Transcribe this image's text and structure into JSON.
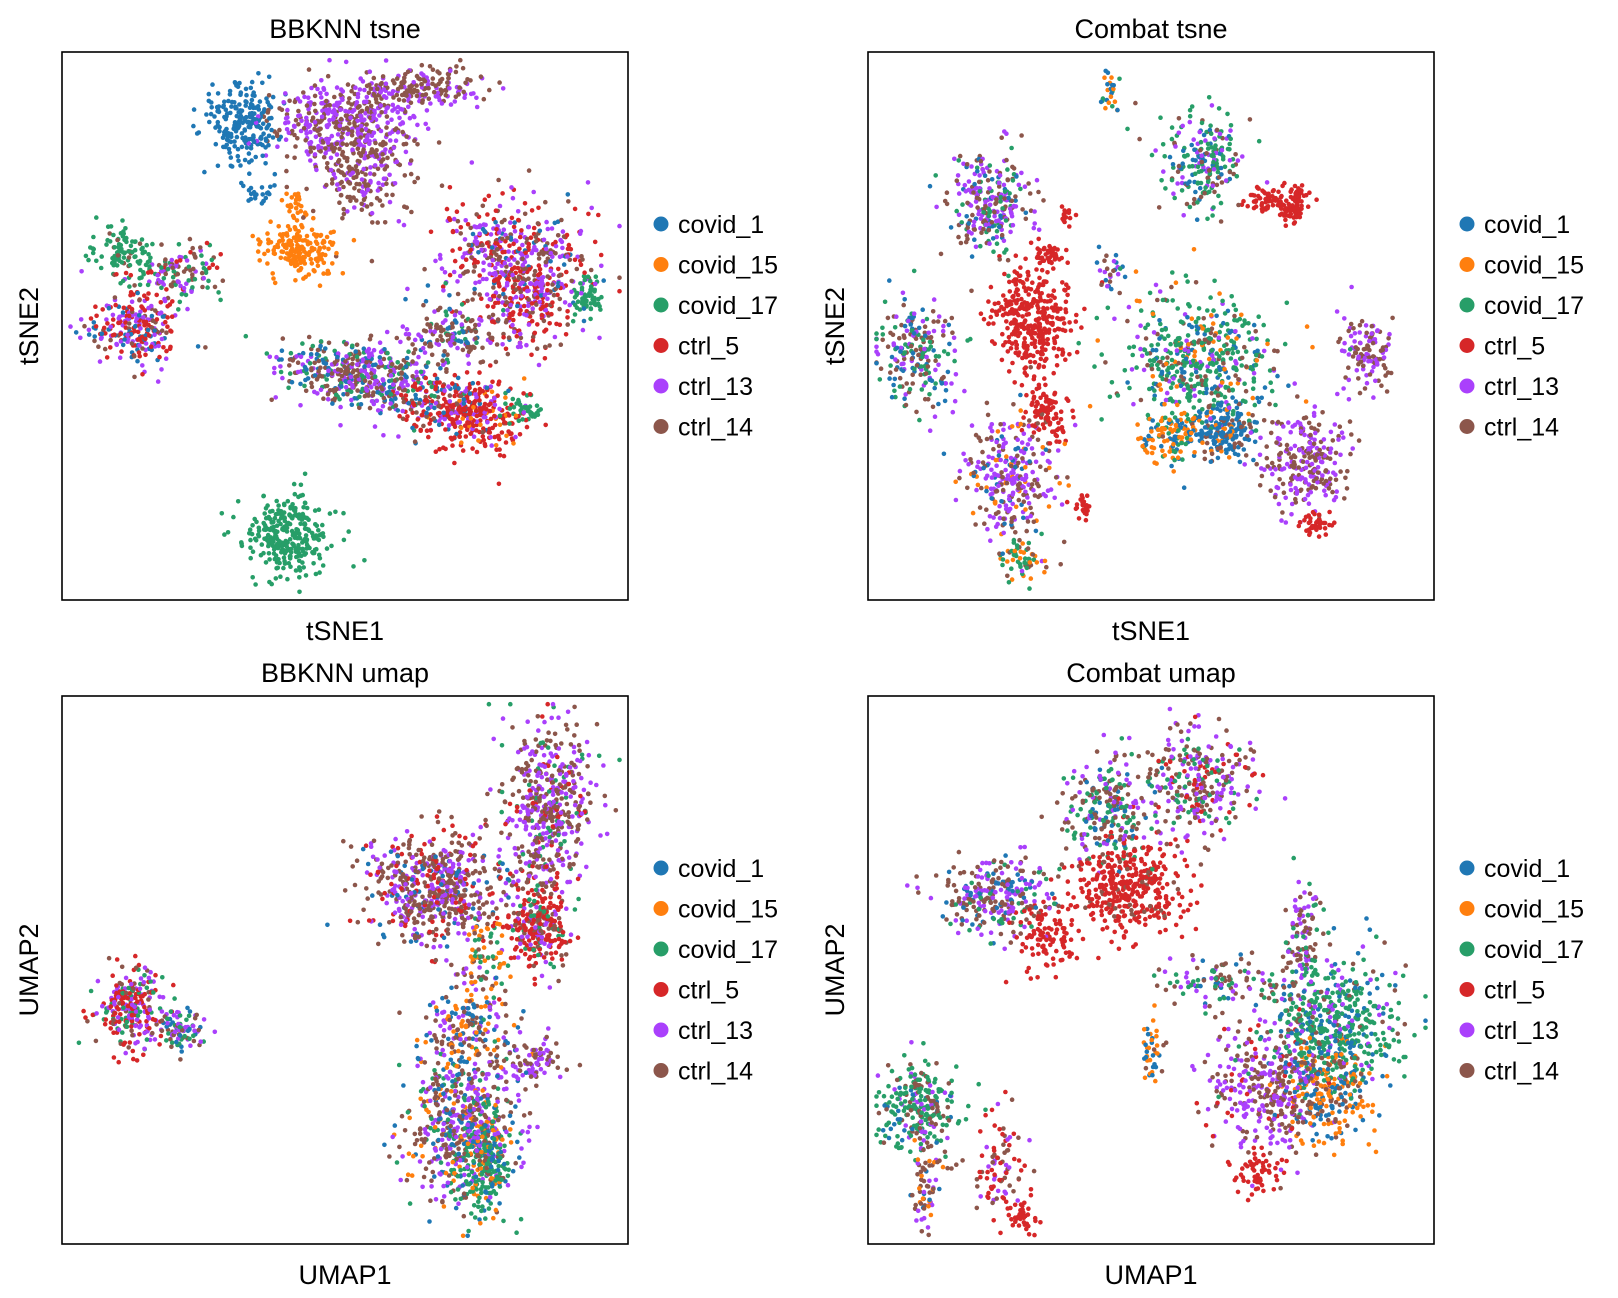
{
  "colors": {
    "covid_1": "#1f77b4",
    "covid_15": "#ff7f0e",
    "covid_17": "#279e68",
    "ctrl_5": "#d62728",
    "ctrl_13": "#aa40fc",
    "ctrl_14": "#8c564b"
  },
  "chart_data": [
    {
      "type": "scatter",
      "title": "BBKNN tsne",
      "xlabel": "tSNE1",
      "ylabel": "tSNE2",
      "ticks": "none",
      "legend": {
        "placement": "right",
        "entries": [
          "covid_1",
          "covid_15",
          "covid_17",
          "ctrl_5",
          "ctrl_13",
          "ctrl_14"
        ]
      },
      "clusters": [
        {
          "x": 0.32,
          "y": 0.87,
          "sx": 0.035,
          "sy": 0.04,
          "n": 220,
          "mix": {
            "covid_1": 1
          }
        },
        {
          "x": 0.35,
          "y": 0.74,
          "sx": 0.012,
          "sy": 0.01,
          "n": 20,
          "mix": {
            "covid_1": 1
          }
        },
        {
          "x": 0.42,
          "y": 0.64,
          "sx": 0.03,
          "sy": 0.025,
          "n": 180,
          "mix": {
            "covid_15": 1
          }
        },
        {
          "x": 0.41,
          "y": 0.72,
          "sx": 0.012,
          "sy": 0.015,
          "n": 25,
          "mix": {
            "covid_15": 1
          }
        },
        {
          "x": 0.5,
          "y": 0.87,
          "sx": 0.06,
          "sy": 0.04,
          "n": 450,
          "mix": {
            "ctrl_13": 0.5,
            "ctrl_14": 0.5
          }
        },
        {
          "x": 0.53,
          "y": 0.77,
          "sx": 0.04,
          "sy": 0.04,
          "n": 180,
          "mix": {
            "ctrl_13": 0.3,
            "ctrl_14": 0.7
          }
        },
        {
          "x": 0.63,
          "y": 0.93,
          "sx": 0.055,
          "sy": 0.02,
          "n": 180,
          "mix": {
            "ctrl_13": 0.45,
            "ctrl_14": 0.55
          }
        },
        {
          "x": 0.11,
          "y": 0.64,
          "sx": 0.025,
          "sy": 0.025,
          "n": 100,
          "mix": {
            "covid_17": 0.85,
            "ctrl_14": 0.15
          }
        },
        {
          "x": 0.21,
          "y": 0.6,
          "sx": 0.04,
          "sy": 0.025,
          "n": 120,
          "mix": {
            "covid_17": 0.3,
            "ctrl_13": 0.3,
            "ctrl_14": 0.25,
            "ctrl_5": 0.15
          }
        },
        {
          "x": 0.13,
          "y": 0.5,
          "sx": 0.04,
          "sy": 0.035,
          "n": 260,
          "mix": {
            "ctrl_5": 0.35,
            "ctrl_13": 0.3,
            "covid_1": 0.2,
            "ctrl_14": 0.15
          }
        },
        {
          "x": 0.8,
          "y": 0.62,
          "sx": 0.07,
          "sy": 0.06,
          "n": 500,
          "mix": {
            "ctrl_13": 0.4,
            "ctrl_14": 0.25,
            "ctrl_5": 0.25,
            "covid_1": 0.1
          }
        },
        {
          "x": 0.83,
          "y": 0.53,
          "sx": 0.035,
          "sy": 0.04,
          "n": 150,
          "mix": {
            "ctrl_5": 0.5,
            "ctrl_13": 0.3,
            "ctrl_14": 0.2
          }
        },
        {
          "x": 0.93,
          "y": 0.55,
          "sx": 0.015,
          "sy": 0.02,
          "n": 60,
          "mix": {
            "covid_17": 1
          }
        },
        {
          "x": 0.69,
          "y": 0.48,
          "sx": 0.04,
          "sy": 0.03,
          "n": 150,
          "mix": {
            "ctrl_14": 0.45,
            "ctrl_13": 0.25,
            "covid_1": 0.15,
            "covid_17": 0.15
          }
        },
        {
          "x": 0.48,
          "y": 0.42,
          "sx": 0.05,
          "sy": 0.03,
          "n": 260,
          "mix": {
            "ctrl_14": 0.35,
            "ctrl_13": 0.3,
            "covid_1": 0.2,
            "covid_17": 0.15
          }
        },
        {
          "x": 0.58,
          "y": 0.4,
          "sx": 0.045,
          "sy": 0.03,
          "n": 220,
          "mix": {
            "ctrl_13": 0.35,
            "ctrl_14": 0.3,
            "covid_1": 0.2,
            "covid_17": 0.15
          }
        },
        {
          "x": 0.68,
          "y": 0.35,
          "sx": 0.045,
          "sy": 0.03,
          "n": 260,
          "mix": {
            "ctrl_5": 0.6,
            "ctrl_13": 0.15,
            "ctrl_14": 0.15,
            "covid_1": 0.1
          }
        },
        {
          "x": 0.76,
          "y": 0.33,
          "sx": 0.03,
          "sy": 0.03,
          "n": 150,
          "mix": {
            "ctrl_5": 0.7,
            "covid_15": 0.15,
            "ctrl_13": 0.15
          }
        },
        {
          "x": 0.81,
          "y": 0.35,
          "sx": 0.02,
          "sy": 0.015,
          "n": 40,
          "mix": {
            "covid_17": 1
          }
        },
        {
          "x": 0.4,
          "y": 0.12,
          "sx": 0.035,
          "sy": 0.035,
          "n": 300,
          "mix": {
            "covid_17": 1
          }
        }
      ]
    },
    {
      "type": "scatter",
      "title": "Combat tsne",
      "xlabel": "tSNE1",
      "ylabel": "tSNE2",
      "ticks": "none",
      "legend": {
        "placement": "right",
        "entries": [
          "covid_1",
          "covid_15",
          "covid_17",
          "ctrl_5",
          "ctrl_13",
          "ctrl_14"
        ]
      },
      "clusters": [
        {
          "x": 0.43,
          "y": 0.92,
          "sx": 0.008,
          "sy": 0.02,
          "n": 25,
          "mix": {
            "covid_1": 0.4,
            "covid_17": 0.3,
            "covid_15": 0.3
          }
        },
        {
          "x": 0.6,
          "y": 0.8,
          "sx": 0.04,
          "sy": 0.04,
          "n": 220,
          "mix": {
            "covid_17": 0.45,
            "covid_1": 0.2,
            "ctrl_14": 0.2,
            "ctrl_13": 0.15
          }
        },
        {
          "x": 0.7,
          "y": 0.73,
          "sx": 0.02,
          "sy": 0.012,
          "n": 60,
          "mix": {
            "ctrl_5": 1
          }
        },
        {
          "x": 0.75,
          "y": 0.71,
          "sx": 0.012,
          "sy": 0.01,
          "n": 50,
          "mix": {
            "ctrl_5": 1
          }
        },
        {
          "x": 0.76,
          "y": 0.74,
          "sx": 0.01,
          "sy": 0.01,
          "n": 30,
          "mix": {
            "ctrl_5": 1
          }
        },
        {
          "x": 0.22,
          "y": 0.72,
          "sx": 0.035,
          "sy": 0.05,
          "n": 260,
          "mix": {
            "ctrl_13": 0.4,
            "ctrl_14": 0.3,
            "covid_1": 0.15,
            "covid_17": 0.15
          }
        },
        {
          "x": 0.32,
          "y": 0.63,
          "sx": 0.012,
          "sy": 0.01,
          "n": 40,
          "mix": {
            "ctrl_5": 1
          }
        },
        {
          "x": 0.35,
          "y": 0.7,
          "sx": 0.008,
          "sy": 0.008,
          "n": 15,
          "mix": {
            "ctrl_5": 1
          }
        },
        {
          "x": 0.29,
          "y": 0.51,
          "sx": 0.035,
          "sy": 0.05,
          "n": 350,
          "mix": {
            "ctrl_5": 1
          }
        },
        {
          "x": 0.32,
          "y": 0.34,
          "sx": 0.02,
          "sy": 0.025,
          "n": 90,
          "mix": {
            "ctrl_5": 1
          }
        },
        {
          "x": 0.09,
          "y": 0.45,
          "sx": 0.035,
          "sy": 0.05,
          "n": 220,
          "mix": {
            "ctrl_14": 0.3,
            "covid_17": 0.3,
            "covid_1": 0.2,
            "ctrl_13": 0.2
          }
        },
        {
          "x": 0.25,
          "y": 0.22,
          "sx": 0.04,
          "sy": 0.06,
          "n": 300,
          "mix": {
            "ctrl_13": 0.45,
            "ctrl_14": 0.35,
            "covid_1": 0.1,
            "covid_15": 0.1
          }
        },
        {
          "x": 0.27,
          "y": 0.08,
          "sx": 0.02,
          "sy": 0.02,
          "n": 60,
          "mix": {
            "covid_17": 0.5,
            "covid_15": 0.3,
            "ctrl_14": 0.2
          }
        },
        {
          "x": 0.38,
          "y": 0.17,
          "sx": 0.01,
          "sy": 0.012,
          "n": 25,
          "mix": {
            "ctrl_5": 1
          }
        },
        {
          "x": 0.58,
          "y": 0.44,
          "sx": 0.07,
          "sy": 0.06,
          "n": 500,
          "mix": {
            "covid_17": 0.5,
            "ctrl_14": 0.15,
            "covid_1": 0.15,
            "covid_15": 0.1,
            "ctrl_13": 0.1
          }
        },
        {
          "x": 0.63,
          "y": 0.31,
          "sx": 0.03,
          "sy": 0.025,
          "n": 200,
          "mix": {
            "covid_1": 0.7,
            "covid_15": 0.15,
            "ctrl_14": 0.15
          }
        },
        {
          "x": 0.54,
          "y": 0.3,
          "sx": 0.025,
          "sy": 0.03,
          "n": 120,
          "mix": {
            "covid_15": 0.5,
            "covid_1": 0.3,
            "covid_17": 0.2
          }
        },
        {
          "x": 0.77,
          "y": 0.25,
          "sx": 0.04,
          "sy": 0.045,
          "n": 250,
          "mix": {
            "ctrl_14": 0.5,
            "ctrl_13": 0.5
          }
        },
        {
          "x": 0.88,
          "y": 0.45,
          "sx": 0.025,
          "sy": 0.035,
          "n": 120,
          "mix": {
            "ctrl_14": 0.5,
            "ctrl_13": 0.5
          }
        },
        {
          "x": 0.79,
          "y": 0.14,
          "sx": 0.015,
          "sy": 0.01,
          "n": 40,
          "mix": {
            "ctrl_5": 1
          }
        },
        {
          "x": 0.43,
          "y": 0.6,
          "sx": 0.012,
          "sy": 0.02,
          "n": 25,
          "mix": {
            "covid_1": 0.3,
            "ctrl_14": 0.4,
            "ctrl_13": 0.3
          }
        }
      ]
    },
    {
      "type": "scatter",
      "title": "BBKNN umap",
      "xlabel": "UMAP1",
      "ylabel": "UMAP2",
      "ticks": "none",
      "legend": {
        "placement": "right",
        "entries": [
          "covid_1",
          "covid_15",
          "covid_17",
          "ctrl_5",
          "ctrl_13",
          "ctrl_14"
        ]
      },
      "clusters": [
        {
          "x": 0.12,
          "y": 0.43,
          "sx": 0.03,
          "sy": 0.04,
          "n": 260,
          "mix": {
            "ctrl_5": 0.35,
            "ctrl_13": 0.3,
            "covid_17": 0.2,
            "ctrl_14": 0.15
          }
        },
        {
          "x": 0.21,
          "y": 0.39,
          "sx": 0.02,
          "sy": 0.02,
          "n": 90,
          "mix": {
            "ctrl_13": 0.3,
            "covid_17": 0.3,
            "covid_1": 0.2,
            "ctrl_14": 0.2
          }
        },
        {
          "x": 0.66,
          "y": 0.65,
          "sx": 0.06,
          "sy": 0.05,
          "n": 600,
          "mix": {
            "ctrl_14": 0.45,
            "ctrl_13": 0.3,
            "ctrl_5": 0.15,
            "covid_1": 0.1
          }
        },
        {
          "x": 0.86,
          "y": 0.8,
          "sx": 0.04,
          "sy": 0.08,
          "n": 500,
          "mix": {
            "ctrl_13": 0.4,
            "ctrl_14": 0.4,
            "ctrl_5": 0.1,
            "covid_17": 0.1
          }
        },
        {
          "x": 0.84,
          "y": 0.58,
          "sx": 0.03,
          "sy": 0.04,
          "n": 280,
          "mix": {
            "ctrl_5": 0.55,
            "ctrl_14": 0.2,
            "ctrl_13": 0.15,
            "covid_17": 0.1
          }
        },
        {
          "x": 0.75,
          "y": 0.52,
          "sx": 0.02,
          "sy": 0.04,
          "n": 60,
          "mix": {
            "covid_15": 0.5,
            "ctrl_14": 0.3,
            "covid_17": 0.2
          }
        },
        {
          "x": 0.72,
          "y": 0.4,
          "sx": 0.04,
          "sy": 0.05,
          "n": 200,
          "mix": {
            "ctrl_14": 0.4,
            "covid_1": 0.2,
            "ctrl_13": 0.2,
            "covid_15": 0.2
          }
        },
        {
          "x": 0.83,
          "y": 0.33,
          "sx": 0.025,
          "sy": 0.02,
          "n": 80,
          "mix": {
            "ctrl_13": 0.5,
            "ctrl_14": 0.5
          }
        },
        {
          "x": 0.71,
          "y": 0.22,
          "sx": 0.05,
          "sy": 0.07,
          "n": 600,
          "mix": {
            "ctrl_14": 0.3,
            "ctrl_13": 0.3,
            "covid_17": 0.15,
            "covid_15": 0.1,
            "covid_1": 0.15
          }
        },
        {
          "x": 0.75,
          "y": 0.14,
          "sx": 0.025,
          "sy": 0.05,
          "n": 200,
          "mix": {
            "covid_17": 0.6,
            "covid_1": 0.2,
            "covid_15": 0.2
          }
        }
      ]
    },
    {
      "type": "scatter",
      "title": "Combat umap",
      "xlabel": "UMAP1",
      "ylabel": "UMAP2",
      "ticks": "none",
      "legend": {
        "placement": "right",
        "entries": [
          "covid_1",
          "covid_15",
          "covid_17",
          "ctrl_5",
          "ctrl_13",
          "ctrl_14"
        ]
      },
      "clusters": [
        {
          "x": 0.23,
          "y": 0.64,
          "sx": 0.05,
          "sy": 0.035,
          "n": 280,
          "mix": {
            "ctrl_14": 0.4,
            "ctrl_13": 0.3,
            "covid_1": 0.15,
            "covid_17": 0.15
          }
        },
        {
          "x": 0.42,
          "y": 0.8,
          "sx": 0.04,
          "sy": 0.05,
          "n": 250,
          "mix": {
            "ctrl_14": 0.35,
            "covid_17": 0.3,
            "ctrl_13": 0.2,
            "covid_1": 0.15
          }
        },
        {
          "x": 0.58,
          "y": 0.84,
          "sx": 0.05,
          "sy": 0.05,
          "n": 300,
          "mix": {
            "ctrl_13": 0.35,
            "ctrl_14": 0.3,
            "covid_17": 0.2,
            "ctrl_5": 0.15
          }
        },
        {
          "x": 0.46,
          "y": 0.65,
          "sx": 0.05,
          "sy": 0.04,
          "n": 380,
          "mix": {
            "ctrl_5": 0.9,
            "ctrl_14": 0.1
          }
        },
        {
          "x": 0.32,
          "y": 0.57,
          "sx": 0.03,
          "sy": 0.04,
          "n": 100,
          "mix": {
            "ctrl_5": 1
          }
        },
        {
          "x": 0.82,
          "y": 0.4,
          "sx": 0.06,
          "sy": 0.06,
          "n": 500,
          "mix": {
            "covid_17": 0.6,
            "covid_1": 0.2,
            "ctrl_14": 0.1,
            "ctrl_13": 0.1
          }
        },
        {
          "x": 0.81,
          "y": 0.28,
          "sx": 0.04,
          "sy": 0.05,
          "n": 250,
          "mix": {
            "covid_15": 0.5,
            "covid_1": 0.3,
            "ctrl_14": 0.2
          }
        },
        {
          "x": 0.71,
          "y": 0.28,
          "sx": 0.05,
          "sy": 0.06,
          "n": 350,
          "mix": {
            "ctrl_13": 0.5,
            "ctrl_14": 0.4,
            "ctrl_5": 0.1
          }
        },
        {
          "x": 0.77,
          "y": 0.56,
          "sx": 0.015,
          "sy": 0.05,
          "n": 100,
          "mix": {
            "ctrl_13": 0.4,
            "ctrl_14": 0.4,
            "covid_17": 0.2
          }
        },
        {
          "x": 0.63,
          "y": 0.48,
          "sx": 0.06,
          "sy": 0.025,
          "n": 120,
          "mix": {
            "ctrl_14": 0.4,
            "covid_17": 0.2,
            "covid_1": 0.2,
            "ctrl_13": 0.2
          }
        },
        {
          "x": 0.69,
          "y": 0.13,
          "sx": 0.02,
          "sy": 0.02,
          "n": 60,
          "mix": {
            "ctrl_5": 1
          }
        },
        {
          "x": 0.5,
          "y": 0.35,
          "sx": 0.01,
          "sy": 0.03,
          "n": 40,
          "mix": {
            "covid_1": 0.4,
            "covid_15": 0.4,
            "ctrl_14": 0.2
          }
        },
        {
          "x": 0.09,
          "y": 0.25,
          "sx": 0.035,
          "sy": 0.04,
          "n": 250,
          "mix": {
            "covid_17": 0.55,
            "ctrl_14": 0.2,
            "ctrl_13": 0.15,
            "covid_1": 0.1
          }
        },
        {
          "x": 0.1,
          "y": 0.11,
          "sx": 0.015,
          "sy": 0.04,
          "n": 70,
          "mix": {
            "ctrl_14": 0.4,
            "ctrl_13": 0.3,
            "covid_15": 0.15,
            "covid_1": 0.15
          }
        },
        {
          "x": 0.23,
          "y": 0.14,
          "sx": 0.03,
          "sy": 0.05,
          "n": 90,
          "mix": {
            "ctrl_14": 0.3,
            "ctrl_5": 0.4,
            "ctrl_13": 0.3
          }
        },
        {
          "x": 0.27,
          "y": 0.05,
          "sx": 0.015,
          "sy": 0.015,
          "n": 40,
          "mix": {
            "ctrl_5": 1
          }
        }
      ]
    }
  ]
}
